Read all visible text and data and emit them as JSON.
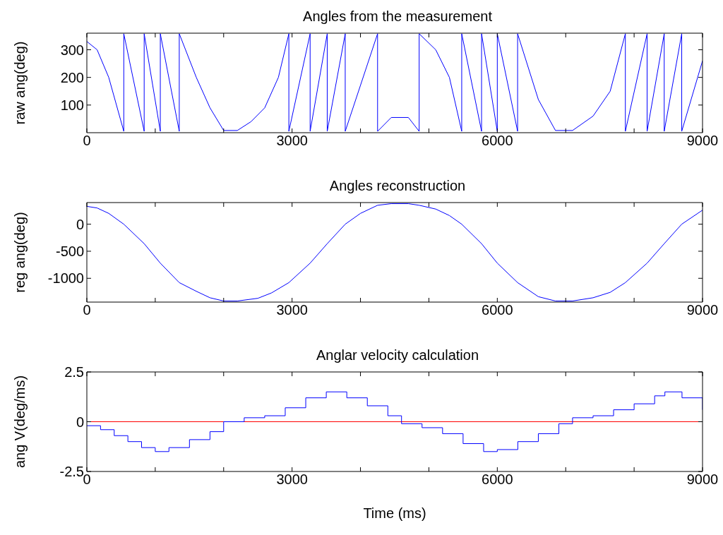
{
  "chart_data": [
    {
      "type": "line",
      "title": "Angles from the measurement",
      "ylabel": "raw ang(deg)",
      "xlim": [
        0,
        9000
      ],
      "xticks": [
        0,
        {
          "value": 1000,
          "label": null
        },
        {
          "value": 2000,
          "label": null
        },
        3000,
        {
          "value": 4000,
          "label": null
        },
        {
          "value": 5000,
          "label": null
        },
        6000,
        {
          "value": 7000,
          "label": null
        },
        {
          "value": 8000,
          "label": null
        },
        9000
      ],
      "ylim": [
        0,
        360
      ],
      "yticks": [
        100,
        200,
        300
      ],
      "marker": "none",
      "line_style": "solid",
      "series": [
        {
          "color": "#0000ff",
          "x": [
            0,
            150,
            320,
            540,
            540,
            838,
            838,
            1074,
            1074,
            1351,
            1351,
            1600,
            1800,
            2000,
            2200,
            2400,
            2600,
            2800,
            2953,
            2953,
            3264,
            3264,
            3514,
            3514,
            3777,
            3777,
            4250,
            4250,
            4450,
            4700,
            4858,
            4858,
            5100,
            5300,
            5480,
            5480,
            5770,
            5770,
            6000,
            6000,
            6297,
            6297,
            6600,
            6850,
            7100,
            7400,
            7650,
            7872,
            7872,
            8190,
            8190,
            8440,
            8440,
            8696,
            8696,
            9000
          ],
          "values": [
            330,
            300,
            200,
            5,
            358,
            5,
            358,
            5,
            358,
            5,
            358,
            200,
            90,
            8,
            8,
            40,
            90,
            200,
            358,
            5,
            358,
            5,
            358,
            5,
            358,
            5,
            358,
            5,
            55,
            55,
            5,
            358,
            300,
            200,
            5,
            358,
            5,
            358,
            5,
            358,
            5,
            358,
            120,
            8,
            8,
            60,
            150,
            358,
            5,
            358,
            5,
            358,
            5,
            358,
            5,
            260
          ]
        }
      ]
    },
    {
      "type": "line",
      "title": "Angles reconstruction",
      "ylabel": "reg ang(deg)",
      "xlim": [
        0,
        9000
      ],
      "xticks": [
        0,
        {
          "value": 1000,
          "label": null
        },
        {
          "value": 2000,
          "label": null
        },
        3000,
        {
          "value": 4000,
          "label": null
        },
        {
          "value": 5000,
          "label": null
        },
        6000,
        {
          "value": 7000,
          "label": null
        },
        {
          "value": 8000,
          "label": null
        },
        9000
      ],
      "ylim": [
        -1440,
        400
      ],
      "yticks": [
        -1000,
        -500,
        0
      ],
      "marker": "none",
      "line_style": "solid",
      "series": [
        {
          "color": "#0000ff",
          "x": [
            0,
            150,
            320,
            540,
            838,
            1074,
            1351,
            1600,
            1800,
            2000,
            2200,
            2500,
            2700,
            2953,
            3264,
            3514,
            3777,
            4000,
            4250,
            4450,
            4700,
            4858,
            5100,
            5300,
            5480,
            5770,
            6000,
            6297,
            6600,
            6850,
            7100,
            7400,
            7650,
            7872,
            8190,
            8440,
            8696,
            9000
          ],
          "values": [
            330,
            300,
            200,
            0,
            -360,
            -720,
            -1080,
            -1240,
            -1360,
            -1420,
            -1420,
            -1370,
            -1270,
            -1080,
            -720,
            -360,
            0,
            200,
            350,
            380,
            380,
            350,
            280,
            160,
            0,
            -360,
            -720,
            -1080,
            -1340,
            -1420,
            -1420,
            -1360,
            -1260,
            -1080,
            -720,
            -360,
            0,
            260
          ]
        }
      ]
    },
    {
      "type": "step",
      "title": "Anglar velocity calculation",
      "ylabel": "ang V(deg/ms)",
      "xlabel": "Time (ms)",
      "xlim": [
        0,
        9000
      ],
      "xticks": [
        0,
        {
          "value": 1000,
          "label": null
        },
        {
          "value": 2000,
          "label": null
        },
        3000,
        {
          "value": 4000,
          "label": null
        },
        {
          "value": 5000,
          "label": null
        },
        6000,
        {
          "value": 7000,
          "label": null
        },
        {
          "value": 8000,
          "label": null
        },
        9000
      ],
      "ylim": [
        -2.5,
        2.5
      ],
      "yticks": [
        -2.5,
        0,
        2.5
      ],
      "marker": "none",
      "line_style": "solid",
      "ref_lines": [
        {
          "axis": "y",
          "value": 0,
          "color": "#ff0000"
        }
      ],
      "series": [
        {
          "color": "#0000ff",
          "x": [
            0,
            200,
            400,
            600,
            800,
            1000,
            1200,
            1500,
            1800,
            2000,
            2300,
            2600,
            2900,
            3200,
            3500,
            3800,
            4100,
            4400,
            4600,
            4900,
            5200,
            5500,
            5800,
            6000,
            6300,
            6600,
            6900,
            7100,
            7400,
            7700,
            8000,
            8300,
            8450,
            8700,
            9000
          ],
          "values": [
            -0.2,
            -0.4,
            -0.7,
            -1.0,
            -1.3,
            -1.5,
            -1.3,
            -0.9,
            -0.5,
            0,
            0.2,
            0.3,
            0.7,
            1.2,
            1.5,
            1.2,
            0.8,
            0.3,
            -0.1,
            -0.3,
            -0.6,
            -1.1,
            -1.5,
            -1.4,
            -1.0,
            -0.6,
            -0.1,
            0.2,
            0.3,
            0.6,
            0.9,
            1.3,
            1.5,
            1.2,
            0.6
          ]
        }
      ]
    }
  ]
}
